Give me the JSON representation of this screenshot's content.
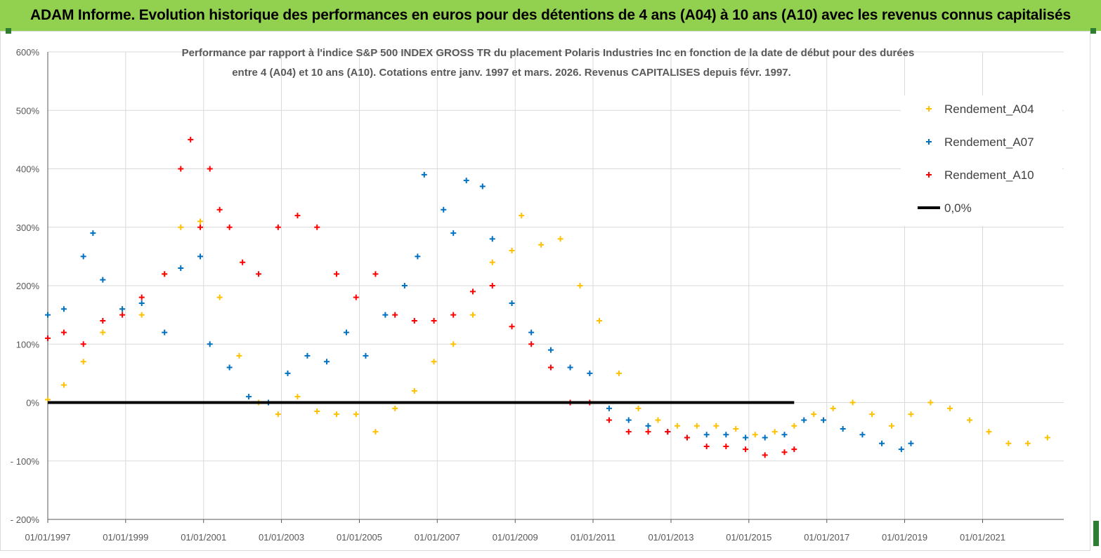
{
  "header": {
    "title": "ADAM Informe. Evolution historique des performances en euros pour des détentions de 4 ans (A04) à 10 ans (A10) avec les revenus connus capitalisés"
  },
  "colors": {
    "banner": "#92d050",
    "A04": "#ffc000",
    "A07": "#0070c0",
    "A10": "#ff0000",
    "zero": "#000000"
  },
  "chart_data": {
    "type": "scatter",
    "title_line1": "Performance par rapport à l'indice S&P 500 INDEX GROSS TR  du placement Polaris Industries Inc en fonction de la date de début pour des durées",
    "title_line2": "entre 4 (A04) et 10 ans (A10). Cotations entre janv. 1997 et mars. 2026. Revenus CAPITALISES depuis févr. 1997.",
    "x_range": [
      "1997-01-01",
      "2023-02-01"
    ],
    "y_range": [
      -200,
      600
    ],
    "y_ticks": [
      600,
      500,
      400,
      300,
      200,
      100,
      0,
      -100,
      -200
    ],
    "y_tick_labels": [
      "600%",
      "500%",
      "400%",
      "300%",
      "200%",
      "100%",
      "0%",
      "- 100%",
      "- 200%"
    ],
    "x_ticks": [
      "1997-01-01",
      "1999-01-01",
      "2001-01-01",
      "2003-01-01",
      "2005-01-01",
      "2007-01-01",
      "2009-01-01",
      "2011-01-01",
      "2013-01-01",
      "2015-01-01",
      "2017-01-01",
      "2019-01-01",
      "2021-01-01"
    ],
    "x_tick_labels": [
      "01/01/1997",
      "01/01/1999",
      "01/01/2001",
      "01/01/2003",
      "01/01/2005",
      "01/01/2007",
      "01/01/2009",
      "01/01/2011",
      "01/01/2013",
      "01/01/2015",
      "01/01/2017",
      "01/01/2019",
      "01/01/2021"
    ],
    "legend_position": "top-right",
    "series": [
      {
        "name": "Rendement_A04",
        "color": "#ffc000",
        "marker": "plus",
        "x": [
          "1997-01-01",
          "1997-06-01",
          "1997-12-01",
          "1998-06-01",
          "1998-12-01",
          "1999-06-01",
          "2000-01-01",
          "2000-06-01",
          "2000-12-01",
          "2001-06-01",
          "2001-12-01",
          "2002-06-01",
          "2002-12-01",
          "2003-06-01",
          "2003-12-01",
          "2004-06-01",
          "2004-12-01",
          "2005-06-01",
          "2005-12-01",
          "2006-06-01",
          "2006-12-01",
          "2007-06-01",
          "2007-12-01",
          "2008-06-01",
          "2008-12-01",
          "2009-03-01",
          "2009-09-01",
          "2010-03-01",
          "2010-09-01",
          "2011-03-01",
          "2011-09-01",
          "2012-03-01",
          "2012-09-01",
          "2013-03-01",
          "2013-09-01",
          "2014-03-01",
          "2014-09-01",
          "2015-03-01",
          "2015-09-01",
          "2016-03-01",
          "2016-09-01",
          "2017-03-01",
          "2017-09-01",
          "2018-03-01",
          "2018-09-01",
          "2019-03-01",
          "2019-09-01",
          "2020-03-01",
          "2020-09-01",
          "2021-03-01",
          "2021-09-01",
          "2022-03-01",
          "2022-09-01"
        ],
        "y": [
          5,
          30,
          70,
          120,
          160,
          150,
          220,
          300,
          310,
          180,
          80,
          0,
          -20,
          10,
          -15,
          -20,
          -20,
          -50,
          -10,
          20,
          70,
          100,
          150,
          240,
          260,
          320,
          270,
          280,
          200,
          140,
          50,
          -10,
          -30,
          -40,
          -40,
          -40,
          -45,
          -55,
          -50,
          -40,
          -20,
          -10,
          0,
          -20,
          -40,
          -20,
          0,
          -10,
          -30,
          -50,
          -70,
          -70,
          -60
        ]
      },
      {
        "name": "Rendement_A07",
        "color": "#0070c0",
        "marker": "plus",
        "x": [
          "1997-01-01",
          "1997-06-01",
          "1997-12-01",
          "1998-03-01",
          "1998-06-01",
          "1998-12-01",
          "1999-06-01",
          "2000-01-01",
          "2000-06-01",
          "2000-12-01",
          "2001-03-01",
          "2001-09-01",
          "2002-03-01",
          "2002-09-01",
          "2003-03-01",
          "2003-09-01",
          "2004-03-01",
          "2004-09-01",
          "2005-03-01",
          "2005-09-01",
          "2006-03-01",
          "2006-07-01",
          "2006-09-01",
          "2007-03-01",
          "2007-06-01",
          "2007-10-01",
          "2008-03-01",
          "2008-06-01",
          "2008-12-01",
          "2009-06-01",
          "2009-12-01",
          "2010-06-01",
          "2010-12-01",
          "2011-06-01",
          "2011-12-01",
          "2012-06-01",
          "2012-12-01",
          "2013-06-01",
          "2013-12-01",
          "2014-06-01",
          "2014-12-01",
          "2015-06-01",
          "2015-12-01",
          "2016-06-01",
          "2016-12-01",
          "2017-06-01",
          "2017-12-01",
          "2018-06-01",
          "2018-12-01",
          "2019-03-01"
        ],
        "y": [
          150,
          160,
          250,
          290,
          210,
          160,
          170,
          120,
          230,
          250,
          100,
          60,
          10,
          0,
          50,
          80,
          70,
          120,
          80,
          150,
          200,
          250,
          390,
          330,
          290,
          380,
          370,
          280,
          170,
          120,
          90,
          60,
          50,
          -10,
          -30,
          -40,
          -50,
          -60,
          -55,
          -55,
          -60,
          -60,
          -55,
          -30,
          -30,
          -45,
          -55,
          -70,
          -80,
          -70
        ]
      },
      {
        "name": "Rendement_A10",
        "color": "#ff0000",
        "marker": "plus",
        "x": [
          "1997-01-01",
          "1997-06-01",
          "1997-12-01",
          "1998-06-01",
          "1998-12-01",
          "1999-06-01",
          "2000-01-01",
          "2000-06-01",
          "2000-09-01",
          "2000-12-01",
          "2001-03-01",
          "2001-06-01",
          "2001-09-01",
          "2002-01-01",
          "2002-06-01",
          "2002-12-01",
          "2003-06-01",
          "2003-12-01",
          "2004-06-01",
          "2004-12-01",
          "2005-06-01",
          "2005-12-01",
          "2006-06-01",
          "2006-12-01",
          "2007-06-01",
          "2007-12-01",
          "2008-06-01",
          "2008-12-01",
          "2009-06-01",
          "2009-12-01",
          "2010-06-01",
          "2010-12-01",
          "2011-06-01",
          "2011-12-01",
          "2012-06-01",
          "2012-12-01",
          "2013-06-01",
          "2013-12-01",
          "2014-06-01",
          "2014-12-01",
          "2015-06-01",
          "2015-12-01",
          "2016-03-01"
        ],
        "y": [
          110,
          120,
          100,
          140,
          150,
          180,
          220,
          400,
          450,
          300,
          400,
          330,
          300,
          240,
          220,
          300,
          320,
          300,
          220,
          180,
          220,
          150,
          140,
          140,
          150,
          190,
          200,
          130,
          100,
          60,
          0,
          0,
          -30,
          -50,
          -50,
          -50,
          -60,
          -75,
          -75,
          -80,
          -90,
          -85,
          -80
        ]
      },
      {
        "name": "0,0%",
        "color": "#000000",
        "marker": "line",
        "x": [
          "1997-01-01",
          "2016-03-01"
        ],
        "y": [
          0,
          0
        ]
      }
    ]
  }
}
